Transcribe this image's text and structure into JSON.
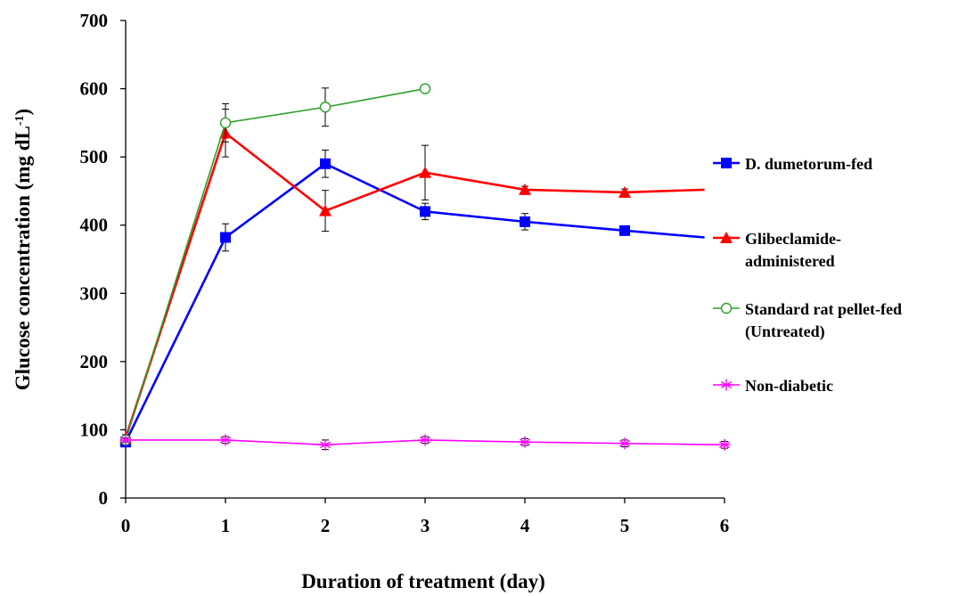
{
  "chart_data": {
    "type": "line",
    "title": "",
    "xlabel": "Duration of treatment (day)",
    "ylabel": "Glucose concentration (mg dL",
    "ylabel_sup": "-1",
    "ylabel_close": ")",
    "xlim": [
      0,
      6
    ],
    "ylim": [
      0,
      700
    ],
    "xticks": [
      "0",
      "1",
      "2",
      "3",
      "4",
      "5",
      "6"
    ],
    "yticks": [
      "0",
      "100",
      "200",
      "300",
      "400",
      "500",
      "600",
      "700"
    ],
    "grid": false,
    "legend_position": "right",
    "series": [
      {
        "name": "D. dumetorum-fed",
        "legend_lines": [
          "D. dumetorum-fed"
        ],
        "color": "#0000ff",
        "marker": "square-filled",
        "x": [
          0,
          1,
          2,
          3,
          4,
          5,
          5.8
        ],
        "y": [
          82,
          382,
          490,
          420,
          405,
          392,
          382
        ],
        "err": [
          5,
          20,
          20,
          12,
          12,
          5,
          0
        ],
        "marker_mask": [
          true,
          true,
          true,
          true,
          true,
          true,
          false
        ]
      },
      {
        "name": "Glibeclamide-administered",
        "legend_lines": [
          "Glibeclamide-",
          "administered"
        ],
        "color": "#ff0000",
        "marker": "triangle-filled",
        "x": [
          0,
          1,
          2,
          3,
          4,
          5,
          5.8
        ],
        "y": [
          88,
          535,
          421,
          477,
          452,
          448,
          452
        ],
        "err": [
          5,
          35,
          30,
          40,
          5,
          5,
          0
        ],
        "marker_mask": [
          true,
          true,
          true,
          true,
          true,
          true,
          false
        ]
      },
      {
        "name": "Standard rat pellet-fed (Untreated)",
        "legend_lines": [
          "Standard rat pellet-fed",
          "(Untreated)"
        ],
        "color": "#2ca02c",
        "marker": "circle-open",
        "x": [
          0,
          1,
          2,
          3
        ],
        "y": [
          85,
          550,
          573,
          600
        ],
        "err": [
          5,
          28,
          28,
          0
        ],
        "marker_mask": [
          true,
          true,
          true,
          true
        ]
      },
      {
        "name": "Non-diabetic",
        "legend_lines": [
          "Non-diabetic"
        ],
        "color": "#ff00ff",
        "marker": "asterisk",
        "x": [
          0,
          1,
          2,
          3,
          4,
          5,
          6
        ],
        "y": [
          85,
          85,
          78,
          85,
          82,
          80,
          78
        ],
        "err": [
          3,
          5,
          7,
          5,
          5,
          5,
          5
        ],
        "marker_mask": [
          true,
          true,
          true,
          true,
          true,
          true,
          true
        ]
      }
    ]
  }
}
